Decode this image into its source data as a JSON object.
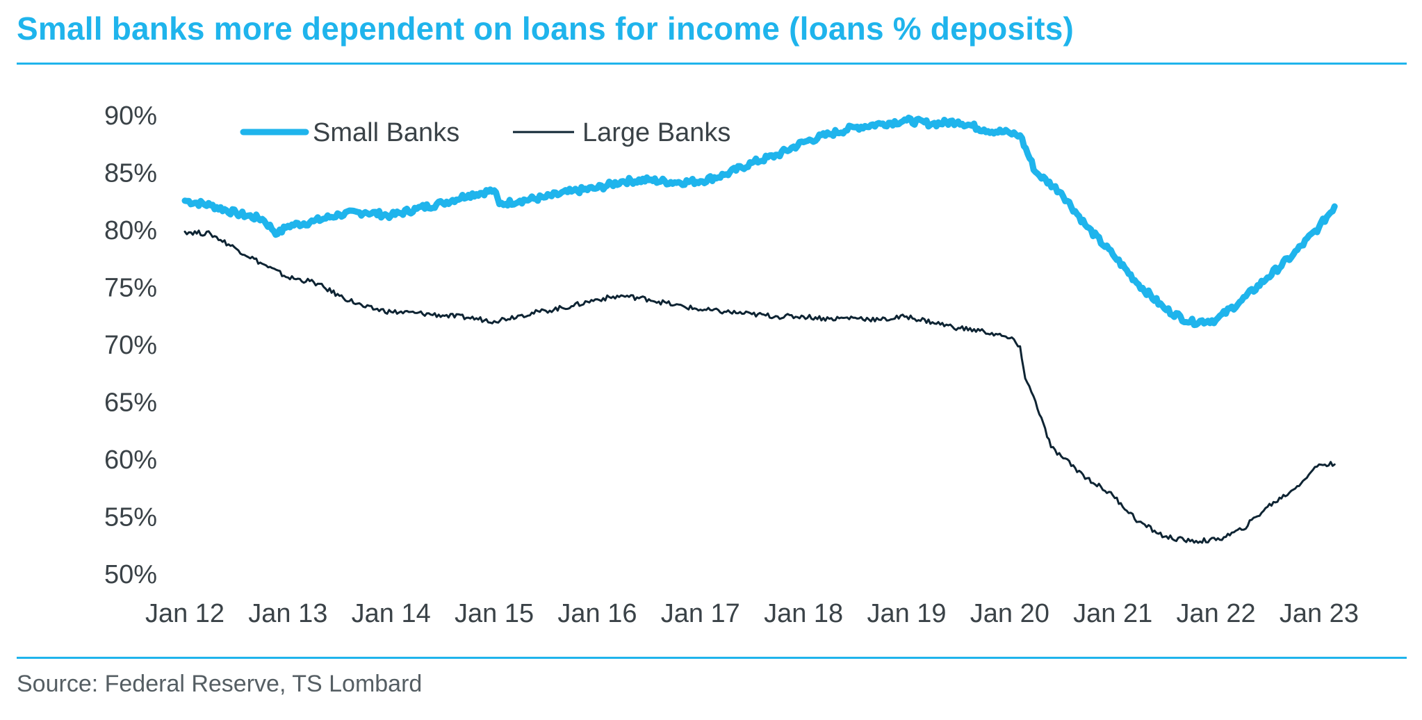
{
  "header": {
    "title": "Small banks more dependent on loans for income (loans % deposits)"
  },
  "footer": {
    "source": "Source: Federal Reserve, TS Lombard"
  },
  "colors": {
    "accent": "#1fb4ec",
    "small_banks": "#1fb4ec",
    "large_banks": "#0e2433",
    "text": "#3a4247"
  },
  "chart_data": {
    "type": "line",
    "title": "Small banks more dependent on loans for income (loans % deposits)",
    "xlabel": "",
    "ylabel": "",
    "ylim": [
      50,
      90
    ],
    "xlim": [
      2012.0,
      2023.25
    ],
    "y_ticks": [
      90,
      85,
      80,
      75,
      70,
      65,
      60,
      55,
      50
    ],
    "y_tick_labels": [
      "90%",
      "85%",
      "80%",
      "75%",
      "70%",
      "65%",
      "60%",
      "55%",
      "50%"
    ],
    "x_ticks": [
      2012,
      2013,
      2014,
      2015,
      2016,
      2017,
      2018,
      2019,
      2020,
      2021,
      2022,
      2023
    ],
    "x_tick_labels": [
      "Jan 12",
      "Jan 13",
      "Jan 14",
      "Jan 15",
      "Jan 16",
      "Jan 17",
      "Jan 18",
      "Jan 19",
      "Jan 20",
      "Jan 21",
      "Jan 22",
      "Jan 23"
    ],
    "grid": false,
    "legend_position": "top-left",
    "series": [
      {
        "name": "Small Banks",
        "x": [
          2012.0,
          2012.25,
          2012.5,
          2012.75,
          2012.9,
          2013.0,
          2013.25,
          2013.5,
          2013.75,
          2014.0,
          2014.25,
          2014.5,
          2014.75,
          2015.0,
          2015.05,
          2015.25,
          2015.5,
          2015.75,
          2016.0,
          2016.25,
          2016.5,
          2016.75,
          2017.0,
          2017.25,
          2017.5,
          2017.75,
          2018.0,
          2018.25,
          2018.5,
          2018.75,
          2019.0,
          2019.25,
          2019.5,
          2019.75,
          2020.0,
          2020.1,
          2020.25,
          2020.5,
          2020.75,
          2021.0,
          2021.25,
          2021.5,
          2021.75,
          2022.0,
          2022.25,
          2022.5,
          2022.75,
          2023.0,
          2023.15
        ],
        "values": [
          82.5,
          82.1,
          81.4,
          80.9,
          79.6,
          80.3,
          80.7,
          81.3,
          81.5,
          81.2,
          81.8,
          82.3,
          83.0,
          83.4,
          82.2,
          82.5,
          82.8,
          83.3,
          83.6,
          84.2,
          84.3,
          84.1,
          84.2,
          84.8,
          85.8,
          86.5,
          87.6,
          88.3,
          88.9,
          89.2,
          89.5,
          89.2,
          89.4,
          88.7,
          88.4,
          88.2,
          85.0,
          83.2,
          80.2,
          77.8,
          75.2,
          73.1,
          71.9,
          72.1,
          73.8,
          75.8,
          77.8,
          80.2,
          82.0
        ]
      },
      {
        "name": "Large Banks",
        "x": [
          2012.0,
          2012.25,
          2012.5,
          2012.75,
          2013.0,
          2013.25,
          2013.5,
          2013.75,
          2014.0,
          2014.25,
          2014.5,
          2014.75,
          2015.0,
          2015.25,
          2015.5,
          2015.75,
          2016.0,
          2016.25,
          2016.5,
          2016.75,
          2017.0,
          2017.25,
          2017.5,
          2017.75,
          2018.0,
          2018.25,
          2018.5,
          2018.75,
          2019.0,
          2019.25,
          2019.5,
          2019.75,
          2020.0,
          2020.1,
          2020.15,
          2020.25,
          2020.4,
          2020.5,
          2020.75,
          2021.0,
          2021.25,
          2021.5,
          2021.75,
          2022.0,
          2022.25,
          2022.5,
          2022.75,
          2022.9,
          2023.0,
          2023.15
        ],
        "values": [
          79.8,
          79.6,
          78.3,
          77.0,
          75.8,
          75.4,
          74.2,
          73.2,
          72.8,
          72.7,
          72.5,
          72.3,
          72.0,
          72.5,
          72.9,
          73.3,
          73.9,
          74.2,
          73.9,
          73.4,
          73.0,
          72.8,
          72.6,
          72.4,
          72.4,
          72.2,
          72.3,
          72.1,
          72.4,
          71.9,
          71.4,
          71.1,
          70.5,
          69.8,
          67.0,
          65.0,
          61.0,
          60.2,
          58.3,
          56.8,
          54.5,
          53.2,
          52.8,
          52.9,
          53.8,
          55.8,
          57.3,
          58.6,
          59.5,
          59.5
        ]
      }
    ]
  }
}
